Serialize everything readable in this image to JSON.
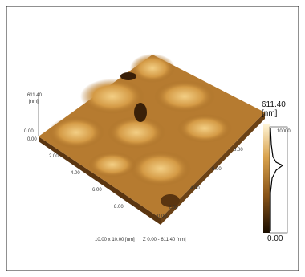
{
  "z_axis": {
    "max": "611.40",
    "unit": "[nm]",
    "min": "0.00"
  },
  "x_axis_labels": [
    "0.00",
    "2.00",
    "4.00",
    "6.00",
    "8.00"
  ],
  "corner_label": "0.00",
  "y_axis_labels": [
    "2.00",
    "4.00",
    "6.00",
    "8.00"
  ],
  "colorbar": {
    "max": "611.40",
    "unit": "[nm]",
    "min": "0.00",
    "hist_max": "10000"
  },
  "caption": {
    "size": "10.00 x 10.00 [um]",
    "z_range": "Z  0.00 - 611.40 [nm]"
  }
}
